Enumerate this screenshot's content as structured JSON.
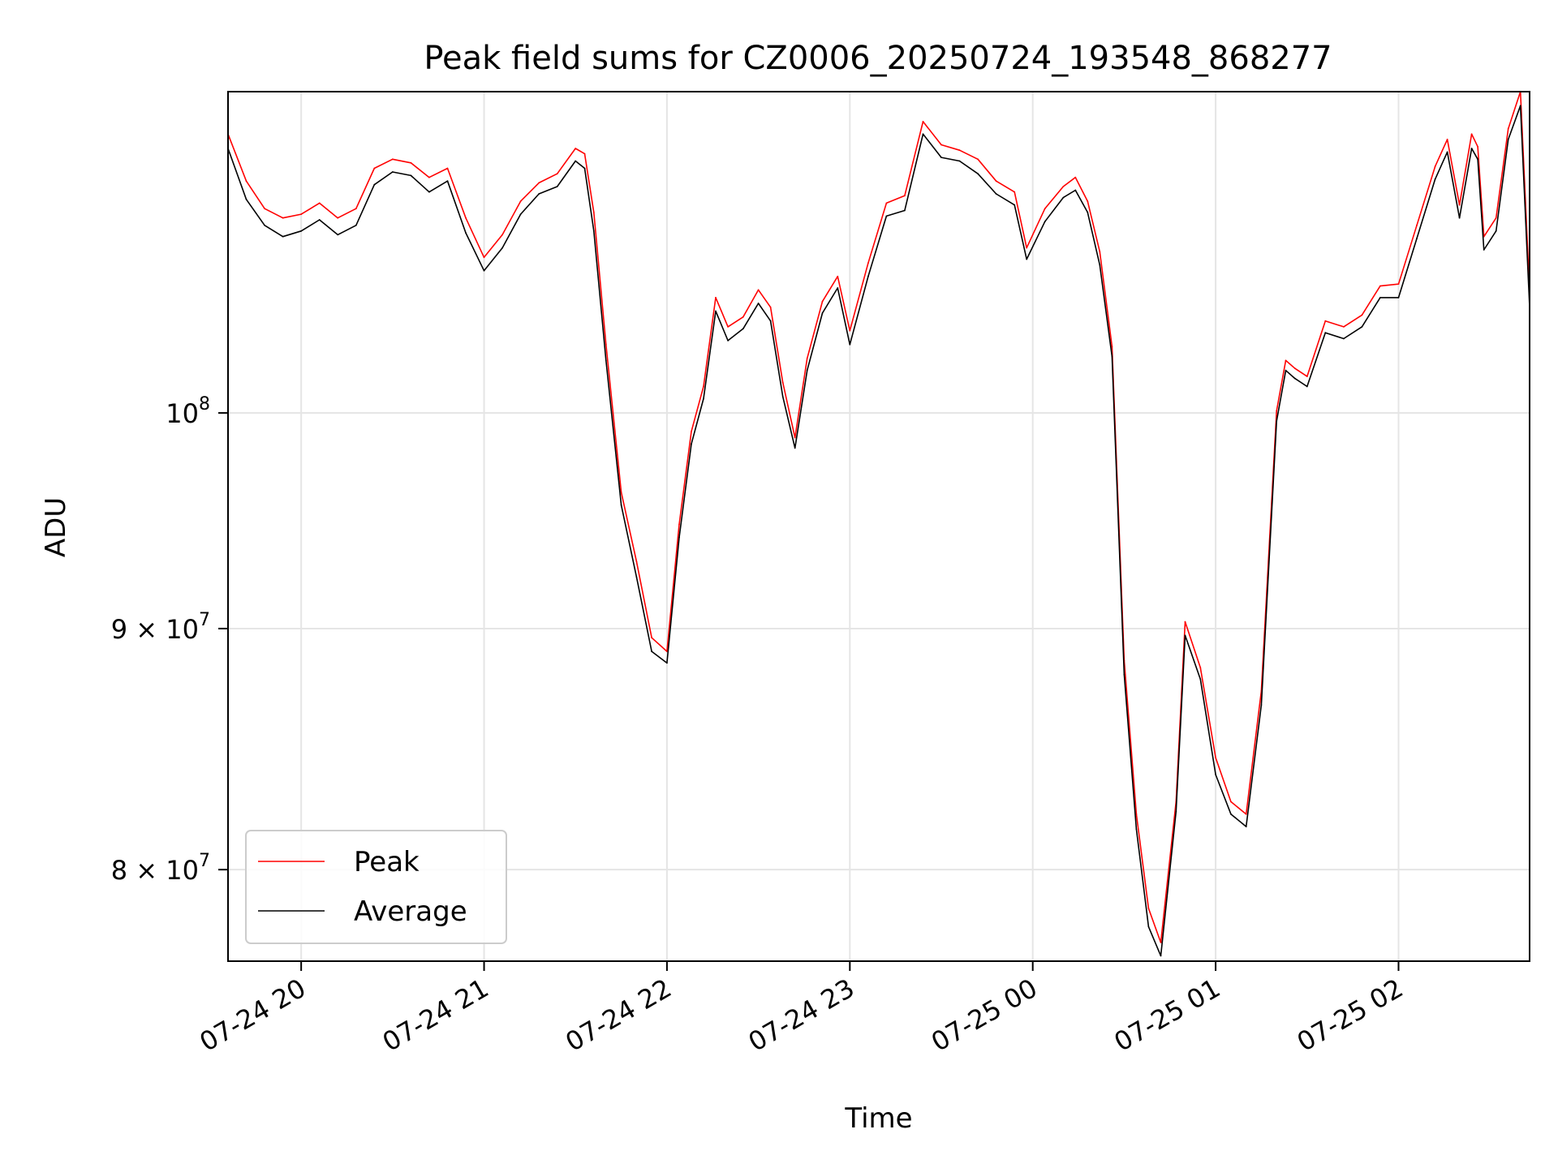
{
  "chart_data": {
    "type": "line",
    "title": "Peak field sums for CZ0006_20250724_193548_868277",
    "xlabel": "Time",
    "ylabel": "ADU",
    "yscale": "log",
    "grid": true,
    "legend_position": "lower-left",
    "x_range": [
      "2025-07-24 19:36",
      "2025-07-25 02:43"
    ],
    "ylim": [
      76500000,
      117000000
    ],
    "x_ticks": [
      {
        "value": "2025-07-24 20:00",
        "label": "07-24 20"
      },
      {
        "value": "2025-07-24 21:00",
        "label": "07-24 21"
      },
      {
        "value": "2025-07-24 22:00",
        "label": "07-24 22"
      },
      {
        "value": "2025-07-24 23:00",
        "label": "07-24 23"
      },
      {
        "value": "2025-07-25 00:00",
        "label": "07-25 00"
      },
      {
        "value": "2025-07-25 01:00",
        "label": "07-25 01"
      },
      {
        "value": "2025-07-25 02:00",
        "label": "07-25 02"
      }
    ],
    "y_ticks": [
      {
        "value": 80000000,
        "base": "8",
        "exp": "7",
        "kind": "sci"
      },
      {
        "value": 90000000,
        "base": "9",
        "exp": "7",
        "kind": "sci"
      },
      {
        "value": 100000000,
        "base": "10",
        "exp": "8",
        "kind": "pow"
      }
    ],
    "x": [
      "2025-07-24 19:36",
      "2025-07-24 19:42",
      "2025-07-24 19:48",
      "2025-07-24 19:54",
      "2025-07-24 20:00",
      "2025-07-24 20:06",
      "2025-07-24 20:12",
      "2025-07-24 20:18",
      "2025-07-24 20:24",
      "2025-07-24 20:30",
      "2025-07-24 20:36",
      "2025-07-24 20:42",
      "2025-07-24 20:48",
      "2025-07-24 20:54",
      "2025-07-24 21:00",
      "2025-07-24 21:06",
      "2025-07-24 21:12",
      "2025-07-24 21:18",
      "2025-07-24 21:24",
      "2025-07-24 21:30",
      "2025-07-24 21:33",
      "2025-07-24 21:36",
      "2025-07-24 21:40",
      "2025-07-24 21:45",
      "2025-07-24 21:50",
      "2025-07-24 21:55",
      "2025-07-24 22:00",
      "2025-07-24 22:04",
      "2025-07-24 22:08",
      "2025-07-24 22:12",
      "2025-07-24 22:16",
      "2025-07-24 22:20",
      "2025-07-24 22:25",
      "2025-07-24 22:30",
      "2025-07-24 22:34",
      "2025-07-24 22:38",
      "2025-07-24 22:42",
      "2025-07-24 22:46",
      "2025-07-24 22:51",
      "2025-07-24 22:56",
      "2025-07-24 23:00",
      "2025-07-24 23:06",
      "2025-07-24 23:12",
      "2025-07-24 23:18",
      "2025-07-24 23:24",
      "2025-07-24 23:30",
      "2025-07-24 23:36",
      "2025-07-24 23:42",
      "2025-07-24 23:48",
      "2025-07-24 23:54",
      "2025-07-24 23:58",
      "2025-07-25 00:04",
      "2025-07-25 00:10",
      "2025-07-25 00:14",
      "2025-07-25 00:18",
      "2025-07-25 00:22",
      "2025-07-25 00:26",
      "2025-07-25 00:30",
      "2025-07-25 00:34",
      "2025-07-25 00:38",
      "2025-07-25 00:42",
      "2025-07-25 00:47",
      "2025-07-25 00:50",
      "2025-07-25 00:55",
      "2025-07-25 01:00",
      "2025-07-25 01:05",
      "2025-07-25 01:10",
      "2025-07-25 01:15",
      "2025-07-25 01:20",
      "2025-07-25 01:23",
      "2025-07-25 01:26",
      "2025-07-25 01:30",
      "2025-07-25 01:36",
      "2025-07-25 01:42",
      "2025-07-25 01:48",
      "2025-07-25 01:54",
      "2025-07-25 02:00",
      "2025-07-25 02:06",
      "2025-07-25 02:12",
      "2025-07-25 02:16",
      "2025-07-25 02:20",
      "2025-07-25 02:24",
      "2025-07-25 02:26",
      "2025-07-25 02:28",
      "2025-07-25 02:32",
      "2025-07-25 02:36",
      "2025-07-25 02:40",
      "2025-07-25 02:43"
    ],
    "series": [
      {
        "name": "Peak",
        "color": "#ff0000",
        "values": [
          114600000,
          112000000,
          110500000,
          110000000,
          110200000,
          110800000,
          110000000,
          110500000,
          112700000,
          113200000,
          113000000,
          112200000,
          112700000,
          110000000,
          107900000,
          109100000,
          110900000,
          111900000,
          112400000,
          113800000,
          113500000,
          110300000,
          103400000,
          96200000,
          93000000,
          89600000,
          89000000,
          94700000,
          99100000,
          101300000,
          105800000,
          104300000,
          104800000,
          106200000,
          105300000,
          101500000,
          98800000,
          102700000,
          105600000,
          106900000,
          104100000,
          107600000,
          110800000,
          111200000,
          115300000,
          114000000,
          113700000,
          113200000,
          112000000,
          111400000,
          108400000,
          110500000,
          111700000,
          112200000,
          110900000,
          108200000,
          103300000,
          88600000,
          82200000,
          78500000,
          77200000,
          82700000,
          90300000,
          88300000,
          84500000,
          82700000,
          82200000,
          87300000,
          100100000,
          102600000,
          102200000,
          101800000,
          104600000,
          104300000,
          104900000,
          106400000,
          106500000,
          109600000,
          112800000,
          114300000,
          110700000,
          114600000,
          113900000,
          109000000,
          110000000,
          114900000,
          117000000,
          106100000
        ]
      },
      {
        "name": "Average",
        "color": "#000000",
        "values": [
          113800000,
          111000000,
          109600000,
          109000000,
          109300000,
          109900000,
          109100000,
          109600000,
          111800000,
          112500000,
          112300000,
          111400000,
          112000000,
          109200000,
          107200000,
          108400000,
          110200000,
          111300000,
          111700000,
          113100000,
          112700000,
          109300000,
          102600000,
          95600000,
          92300000,
          89000000,
          88500000,
          94100000,
          98500000,
          100700000,
          105100000,
          103600000,
          104200000,
          105500000,
          104600000,
          100800000,
          98300000,
          102100000,
          105000000,
          106300000,
          103400000,
          106900000,
          110100000,
          110400000,
          114600000,
          113300000,
          113100000,
          112400000,
          111300000,
          110700000,
          107800000,
          109800000,
          111100000,
          111500000,
          110300000,
          107500000,
          102800000,
          88000000,
          81600000,
          77800000,
          76700000,
          82300000,
          89700000,
          87800000,
          83800000,
          82200000,
          81700000,
          86700000,
          99600000,
          102100000,
          101700000,
          101300000,
          104000000,
          103700000,
          104300000,
          105800000,
          105800000,
          108900000,
          112100000,
          113600000,
          110000000,
          113800000,
          113200000,
          108300000,
          109300000,
          114300000,
          116200000,
          105300000
        ]
      }
    ]
  }
}
